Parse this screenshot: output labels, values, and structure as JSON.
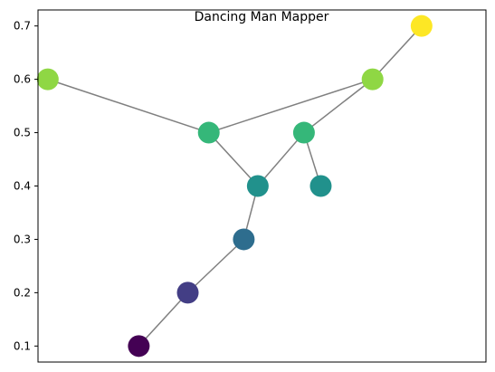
{
  "chart_data": {
    "type": "scatter",
    "title": "Dancing Man Mapper",
    "xlabel": "",
    "ylabel": "",
    "y_ticks": [
      "0.1",
      "0.2",
      "0.3",
      "0.4",
      "0.5",
      "0.6",
      "0.7"
    ],
    "y_tick_values": [
      0.1,
      0.2,
      0.3,
      0.4,
      0.5,
      0.6,
      0.7
    ],
    "ylim": [
      0.07,
      0.73
    ],
    "xlim": [
      0.28,
      3.48
    ],
    "x_ticks_shown": false,
    "grid": false,
    "edge_color": "#808080",
    "nodes": [
      {
        "x": 1.0,
        "y": 0.1,
        "color": "#440154"
      },
      {
        "x": 1.35,
        "y": 0.2,
        "color": "#433e85"
      },
      {
        "x": 1.75,
        "y": 0.3,
        "color": "#2e6d8e"
      },
      {
        "x": 1.85,
        "y": 0.4,
        "color": "#21918c"
      },
      {
        "x": 2.3,
        "y": 0.4,
        "color": "#21918c"
      },
      {
        "x": 1.5,
        "y": 0.5,
        "color": "#35b779"
      },
      {
        "x": 2.18,
        "y": 0.5,
        "color": "#35b779"
      },
      {
        "x": 0.35,
        "y": 0.6,
        "color": "#8fd744"
      },
      {
        "x": 2.67,
        "y": 0.6,
        "color": "#8fd744"
      },
      {
        "x": 3.02,
        "y": 0.7,
        "color": "#fde725"
      }
    ],
    "edges": [
      [
        0,
        1
      ],
      [
        1,
        2
      ],
      [
        2,
        3
      ],
      [
        3,
        5
      ],
      [
        5,
        7
      ],
      [
        5,
        8
      ],
      [
        3,
        6
      ],
      [
        6,
        4
      ],
      [
        6,
        8
      ],
      [
        8,
        9
      ]
    ]
  }
}
